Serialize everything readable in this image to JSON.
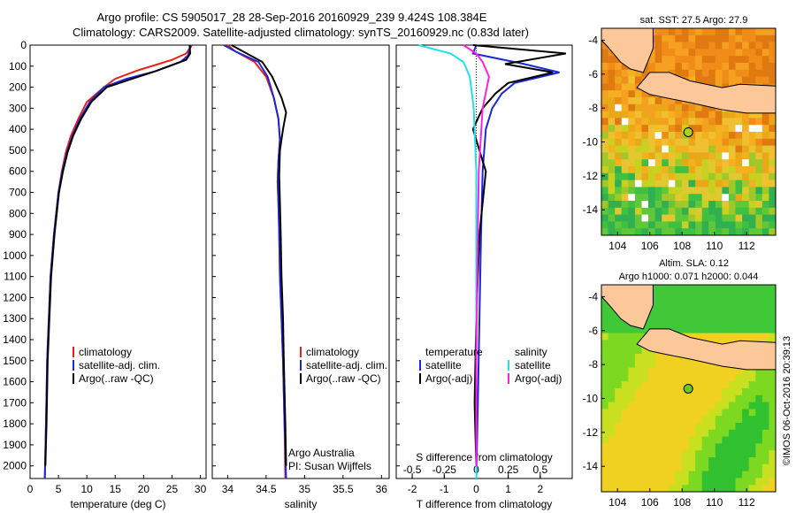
{
  "header": {
    "line1": "Argo profile: CS 5905017_28 28-Sep-2016 20160929_239 9.424S 108.384E",
    "line2": "Climatology: CARS2009. Satellite-adjusted climatology: synTS_20160929.nc (0.83d later)"
  },
  "colors": {
    "climatology": "#e8201c",
    "satellite": "#1c28d8",
    "argo": "#000000",
    "sat_diff_s": "#20e0f0",
    "argo_diff_s": "#ff20e8",
    "land": "#fcc89a"
  },
  "legend": {
    "climatology": "climatology",
    "satellite_adj": "satellite-adj. clim.",
    "argo_raw": "Argo(..raw -QC)",
    "temperature_head": "temperature",
    "salinity_head": "salinity",
    "satellite": "satellite",
    "argo_adj": "Argo(-adj)"
  },
  "credit": {
    "line1": "Argo Australia",
    "line2": "PI: Susan Wijffels"
  },
  "depth_ticks": [
    0,
    100,
    200,
    300,
    400,
    500,
    600,
    700,
    800,
    900,
    1000,
    1100,
    1200,
    1300,
    1400,
    1500,
    1600,
    1700,
    1800,
    1900,
    2000
  ],
  "chart_data": [
    {
      "type": "line",
      "panel": "temperature",
      "xlabel": "temperature (deg C)",
      "xlim": [
        0,
        31
      ],
      "ylim": [
        2060,
        0
      ],
      "xticks": [
        0,
        5,
        10,
        15,
        20,
        25,
        30
      ],
      "series": [
        {
          "name": "climatology",
          "color": "#e8201c",
          "x": [
            28.5,
            27.5,
            25,
            19,
            15,
            13,
            10,
            8.5,
            7.2,
            6.3,
            5.6,
            5.0,
            4.2,
            3.6,
            3.3,
            3.0,
            2.8,
            2.6
          ],
          "y": [
            0,
            40,
            70,
            120,
            160,
            200,
            270,
            350,
            430,
            510,
            600,
            700,
            900,
            1100,
            1300,
            1500,
            1800,
            2060
          ]
        },
        {
          "name": "satellite-adj. clim.",
          "color": "#1c28d8",
          "x": [
            28.3,
            27.8,
            26.5,
            22,
            17,
            13,
            10.5,
            8.8,
            7.5,
            6.5,
            5.7,
            5.0,
            4.2,
            3.6,
            3.3,
            3.0,
            2.8,
            2.6
          ],
          "y": [
            0,
            50,
            80,
            125,
            160,
            200,
            270,
            350,
            430,
            510,
            600,
            700,
            900,
            1100,
            1300,
            1500,
            1800,
            2060
          ]
        },
        {
          "name": "Argo(..raw -QC)",
          "color": "#000000",
          "x": [
            28.1,
            28.2,
            27.5,
            22,
            18,
            13.5,
            10.8,
            9.0,
            7.6,
            6.6,
            5.8,
            5.1,
            4.3,
            3.7,
            3.4,
            3.1,
            2.9,
            2.7
          ],
          "y": [
            0,
            40,
            70,
            125,
            160,
            200,
            270,
            350,
            430,
            510,
            600,
            700,
            900,
            1100,
            1300,
            1500,
            1800,
            2000
          ]
        }
      ]
    },
    {
      "type": "line",
      "panel": "salinity",
      "xlabel": "salinity",
      "xlim": [
        33.8,
        36.1
      ],
      "ylim": [
        2060,
        0
      ],
      "xticks": [
        34,
        34.5,
        35,
        35.5,
        36
      ],
      "series": [
        {
          "name": "climatology",
          "color": "#e8201c",
          "x": [
            34.0,
            34.1,
            34.35,
            34.5,
            34.6,
            34.66,
            34.68,
            34.66,
            34.65,
            34.66,
            34.67,
            34.68,
            34.7,
            34.72,
            34.74,
            34.75
          ],
          "y": [
            0,
            30,
            80,
            150,
            250,
            350,
            450,
            550,
            650,
            750,
            900,
            1100,
            1300,
            1500,
            1800,
            2060
          ]
        },
        {
          "name": "satellite-adj. clim.",
          "color": "#1c28d8",
          "x": [
            33.95,
            34.1,
            34.4,
            34.52,
            34.6,
            34.66,
            34.68,
            34.66,
            34.65,
            34.66,
            34.67,
            34.68,
            34.7,
            34.72,
            34.74,
            34.76
          ],
          "y": [
            0,
            30,
            80,
            150,
            250,
            350,
            450,
            550,
            650,
            750,
            900,
            1100,
            1300,
            1500,
            1800,
            2060
          ]
        },
        {
          "name": "Argo(..raw -QC)",
          "color": "#000000",
          "x": [
            34.05,
            34.2,
            34.45,
            34.58,
            34.7,
            34.76,
            34.72,
            34.68,
            34.67,
            34.68,
            34.69,
            34.7,
            34.72,
            34.73,
            34.75,
            34.76
          ],
          "y": [
            0,
            30,
            80,
            150,
            250,
            320,
            400,
            500,
            620,
            750,
            900,
            1100,
            1300,
            1500,
            1800,
            2000
          ]
        }
      ]
    },
    {
      "type": "line",
      "panel": "difference",
      "xlabel": "T difference from climatology",
      "xlabel_top": "S difference from climatology",
      "xlim": [
        -2.5,
        3
      ],
      "ylim": [
        2060,
        0
      ],
      "xticks": [
        -2,
        -1,
        0,
        1,
        2
      ],
      "xtick_labels": [
        "-2",
        "-1",
        "0",
        "1",
        "2"
      ],
      "s_ticks": [
        -0.5,
        -0.25,
        0,
        0.25,
        0.5
      ],
      "s_tick_labels": [
        "-0.5",
        "-0.25",
        "0",
        "0.25",
        "0.5"
      ],
      "series": [
        {
          "name": "temperature satellite",
          "color": "#1c28d8",
          "x": [
            0.0,
            -0.1,
            1.5,
            2.6,
            1.2,
            0.8,
            0.5,
            0.3,
            0.2,
            0.15,
            0.1,
            0.05,
            0.0
          ],
          "y": [
            0,
            40,
            90,
            130,
            180,
            230,
            300,
            400,
            600,
            900,
            1300,
            1700,
            2060
          ]
        },
        {
          "name": "temperature Argo(-adj)",
          "color": "#000000",
          "x": [
            -0.1,
            2.8,
            0.9,
            2.4,
            1.0,
            0.6,
            0.2,
            -0.1,
            0.3,
            0.1,
            0.0,
            -0.05,
            0.0
          ],
          "y": [
            0,
            40,
            90,
            130,
            180,
            230,
            300,
            400,
            600,
            900,
            1300,
            1700,
            2000
          ]
        },
        {
          "name": "salinity satellite",
          "color": "#20e0f0",
          "x": [
            -0.45,
            -0.2,
            -0.1,
            -0.05,
            -0.02,
            0.0,
            0.0,
            0.0,
            0.0
          ],
          "y": [
            0,
            40,
            80,
            150,
            300,
            600,
            1000,
            1500,
            2060
          ]
        },
        {
          "name": "salinity Argo(-adj)",
          "color": "#ff20e8",
          "x": [
            -0.1,
            0.0,
            0.05,
            0.1,
            0.05,
            0.02,
            0.01,
            0.0,
            0.0
          ],
          "y": [
            0,
            40,
            80,
            150,
            300,
            600,
            1000,
            1500,
            2000
          ]
        }
      ]
    },
    {
      "type": "heatmap",
      "panel": "map-sst",
      "title": "sat. SST: 27.5 Argo: 27.9",
      "xlim": [
        103,
        113.8
      ],
      "ylim": [
        -15.5,
        -3.3
      ],
      "xticks": [
        104,
        106,
        108,
        110,
        112
      ],
      "yticks": [
        -4,
        -6,
        -8,
        -10,
        -12,
        -14
      ],
      "argo_position": [
        108.384,
        -9.424
      ]
    },
    {
      "type": "heatmap",
      "panel": "map-sla",
      "title": "Altim. SLA: 0.12",
      "subtitle": "Argo h1000: 0.071 h2000: 0.044",
      "xlim": [
        103,
        113.8
      ],
      "ylim": [
        -15.5,
        -3.3
      ],
      "xticks": [
        104,
        106,
        108,
        110,
        112
      ],
      "yticks": [
        -4,
        -6,
        -8,
        -10,
        -12,
        -14
      ],
      "argo_position": [
        108.384,
        -9.424
      ]
    }
  ],
  "footer": {
    "stamp": "©IMOS 06-Oct-2016 20:39:13"
  }
}
